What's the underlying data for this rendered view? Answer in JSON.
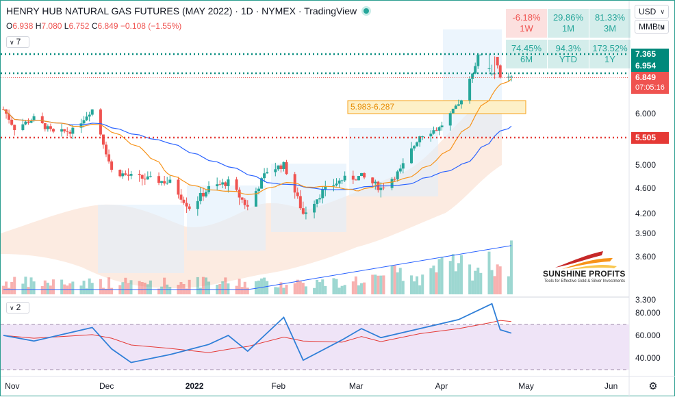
{
  "header": {
    "title": "HENRY HUB NATURAL GAS FUTURES (MAY 2022) · 1D · NYMEX · TradingView",
    "ohlc": {
      "o_label": "O",
      "o": "6.938",
      "h_label": "H",
      "h": "7.080",
      "l_label": "L",
      "l": "6.752",
      "c_label": "C",
      "c": "6.849",
      "change": "−0.108 (−1.55%)"
    },
    "main_indicator_count": "7",
    "sub_indicator_count": "2"
  },
  "performance": [
    {
      "value": "-6.18%",
      "period": "1W",
      "status": "negative"
    },
    {
      "value": "29.86%",
      "period": "1M",
      "status": "positive"
    },
    {
      "value": "81.33%",
      "period": "3M",
      "status": "positive"
    },
    {
      "value": "74.45%",
      "period": "6M",
      "status": "positive"
    },
    {
      "value": "94.3%",
      "period": "YTD",
      "status": "positive"
    },
    {
      "value": "173.52%",
      "period": "1Y",
      "status": "positive"
    }
  ],
  "controls": {
    "currency": "USD",
    "unit": "MMBtu"
  },
  "price_labels": {
    "upper_level": "7.365",
    "upper_level_2": "6.954",
    "last_price": "6.849",
    "countdown": "07:05:16",
    "lower_level": "5.505"
  },
  "range_box_label": "5.983-6.287",
  "logo": {
    "name": "SUNSHINE PROFITS",
    "tagline": "Tools for Effective Gold & Silver Investments"
  },
  "colors": {
    "up": "#26a69a",
    "down": "#ef5350",
    "green_level": "#00897b",
    "red_level": "#e53935",
    "accent_orange": "#f7931a",
    "ma_blue": "#2962ff",
    "rsi_line": "#2f7fd8",
    "rsi_ma": "#e53935"
  },
  "chart_data": {
    "type": "candlestick",
    "y_axis_ticks": [
      "6.000",
      "5.000",
      "4.600",
      "4.200",
      "3.900",
      "3.600",
      "3.300"
    ],
    "x_axis_ticks": [
      "Nov",
      "Dec",
      "2022",
      "Feb",
      "Mar",
      "Apr",
      "May",
      "Jun"
    ],
    "horizontal_levels": [
      {
        "value": 7.365,
        "style": "dotted",
        "color": "green"
      },
      {
        "value": 6.954,
        "style": "dotted",
        "color": "green"
      },
      {
        "value": 5.505,
        "style": "dotted",
        "color": "red"
      }
    ],
    "range_box": [
      5.983,
      6.287
    ],
    "price_points": [
      [
        "2021-10-25",
        6.1
      ],
      [
        "2021-10-29",
        5.7
      ],
      [
        "2021-11-05",
        5.9
      ],
      [
        "2021-11-12",
        5.6
      ],
      [
        "2021-11-19",
        5.65
      ],
      [
        "2021-11-26",
        6.1
      ],
      [
        "2021-12-03",
        4.9
      ],
      [
        "2021-12-10",
        4.8
      ],
      [
        "2021-12-17",
        4.75
      ],
      [
        "2021-12-24",
        4.7
      ],
      [
        "2021-12-31",
        4.3
      ],
      [
        "2022-01-07",
        4.6
      ],
      [
        "2022-01-14",
        4.7
      ],
      [
        "2022-01-21",
        4.3
      ],
      [
        "2022-01-28",
        4.9
      ],
      [
        "2022-02-03",
        5.0
      ],
      [
        "2022-02-10",
        4.2
      ],
      [
        "2022-02-17",
        4.55
      ],
      [
        "2022-02-24",
        4.75
      ],
      [
        "2022-03-03",
        4.8
      ],
      [
        "2022-03-10",
        4.6
      ],
      [
        "2022-03-17",
        4.9
      ],
      [
        "2022-03-24",
        5.55
      ],
      [
        "2022-03-31",
        5.7
      ],
      [
        "2022-04-07",
        6.2
      ],
      [
        "2022-04-14",
        7.3
      ],
      [
        "2022-04-19",
        7.8
      ],
      [
        "2022-04-22",
        6.8
      ],
      [
        "2022-04-26",
        6.85
      ]
    ],
    "last": {
      "open": 6.938,
      "high": 7.08,
      "low": 6.752,
      "close": 6.849
    },
    "rsi": {
      "y_axis_ticks": [
        "80.000",
        "60.000",
        "40.000"
      ],
      "bands": [
        30,
        70
      ],
      "points": [
        [
          "2021-10-25",
          60
        ],
        [
          "2021-11-05",
          55
        ],
        [
          "2021-11-26",
          67
        ],
        [
          "2021-12-03",
          48
        ],
        [
          "2021-12-10",
          36
        ],
        [
          "2021-12-24",
          43
        ],
        [
          "2022-01-07",
          52
        ],
        [
          "2022-01-14",
          60
        ],
        [
          "2022-01-21",
          46
        ],
        [
          "2022-02-03",
          76
        ],
        [
          "2022-02-10",
          38
        ],
        [
          "2022-02-24",
          56
        ],
        [
          "2022-03-03",
          66
        ],
        [
          "2022-03-10",
          58
        ],
        [
          "2022-03-24",
          66
        ],
        [
          "2022-04-07",
          74
        ],
        [
          "2022-04-19",
          88
        ],
        [
          "2022-04-22",
          65
        ],
        [
          "2022-04-26",
          62
        ]
      ]
    }
  }
}
